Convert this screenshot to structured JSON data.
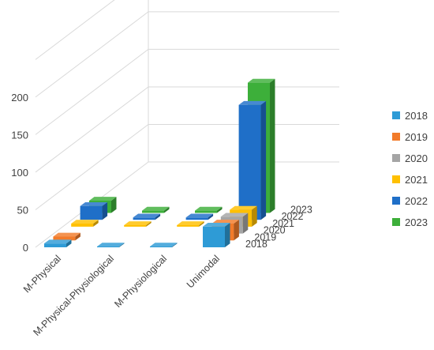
{
  "chart_data": {
    "type": "bar",
    "categories": [
      "M-Physical",
      "M-Physical-Physiological",
      "M-Physiological",
      "Unimodal"
    ],
    "series": [
      {
        "name": "2018",
        "values": [
          5,
          1,
          1,
          27
        ],
        "color": "#2E9BD6"
      },
      {
        "name": "2019",
        "values": [
          5,
          0,
          0,
          22
        ],
        "color": "#F27B2A"
      },
      {
        "name": "2020",
        "values": [
          0,
          0,
          0,
          22
        ],
        "color": "#A5A5A5"
      },
      {
        "name": "2021",
        "values": [
          4,
          2,
          2,
          22
        ],
        "color": "#FFC000"
      },
      {
        "name": "2022",
        "values": [
          18,
          3,
          3,
          150
        ],
        "color": "#1F6FC8"
      },
      {
        "name": "2023",
        "values": [
          16,
          3,
          3,
          170
        ],
        "color": "#3DAF3A"
      }
    ],
    "yticks": [
      "0",
      "50",
      "100",
      "150",
      "200"
    ],
    "ylim": [
      0,
      250
    ],
    "title": "",
    "xlabel": "",
    "ylabel": "",
    "grid": true,
    "legend_position": "right"
  }
}
